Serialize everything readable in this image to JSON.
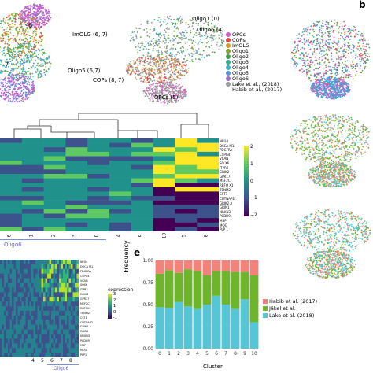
{
  "panel_b": {
    "letter": "b"
  },
  "panel_e": {
    "letter": "e"
  },
  "tsne_labels": [
    {
      "text": "ImOLG (6, 7)",
      "color": "#c8891a"
    },
    {
      "text": "Oligo1 (0)",
      "color": "#66b7cf"
    },
    {
      "text": "Oligo6 (4)",
      "color": "#66b7cf"
    },
    {
      "text": "Oligo5 (6,7)",
      "color": "#66b7cf"
    },
    {
      "text": "COPs (8, 7)",
      "color": "#e05a42"
    },
    {
      "text": "OPCs (5)",
      "color": "#d76fc0"
    }
  ],
  "left_cluster_labels": [
    "6",
    "7",
    "5"
  ],
  "tsne_legend": [
    {
      "label": "OPCs",
      "color": "#d45cc6"
    },
    {
      "label": "COPs",
      "color": "#e8453c"
    },
    {
      "label": "ImOLG",
      "color": "#d99a1f"
    },
    {
      "label": "Oligo1",
      "color": "#7fa72a"
    },
    {
      "label": "Oligo2",
      "color": "#3fa34d"
    },
    {
      "label": "Oligo3",
      "color": "#31b08e"
    },
    {
      "label": "Oligo4",
      "color": "#2cb4c9"
    },
    {
      "label": "Oligo5",
      "color": "#5b8fe0"
    },
    {
      "label": "Oligo6",
      "color": "#a06ad6"
    },
    {
      "label": "Lake et al., (2018)",
      "color": "#9a9a9a"
    },
    {
      "label": "Habib et al., (2017)",
      "color": ""
    }
  ],
  "heatmap_genes": [
    "NEU4",
    "DSCA M1",
    "PDGFRA",
    "CSPG4",
    "VCAN",
    "SO X6",
    "ITPR2",
    "GRIK2",
    "GPR17",
    "MEF2C",
    "RBFO X1",
    "TENM2",
    "CST1",
    "CNTNAP2",
    "GRIK2 A",
    "GRIN1",
    "NRXN3",
    "PCDH9",
    "MBP",
    "MOG",
    "PLP 1"
  ],
  "heatmap_scale": {
    "ticks": [
      "2",
      "1",
      "0",
      "−1",
      "−2"
    ],
    "colors": [
      "#fde725",
      "#5ec962",
      "#21918c",
      "#3b528b",
      "#440154"
    ]
  },
  "heatmap_xticks": [
    "6",
    "1",
    "2",
    "3",
    "0",
    "4",
    "9",
    "10",
    "5",
    "8"
  ],
  "heatmap_group_label": "Oligo6",
  "panel_d": {
    "genes": [
      "NEU4",
      "DOCA M1",
      "PDGFRA",
      "CSPG4",
      "VCAN",
      "SOX6",
      "ITPR2",
      "GRIK2",
      "GPR17",
      "MEF2C",
      "RBFOX1",
      "TENM2",
      "CST1",
      "CNTNAP2",
      "GRIK2 A",
      "GRIN1",
      "NRXN3",
      "PCDH9",
      "MBP",
      "MOG",
      "PLP1"
    ],
    "legend_title": "expression",
    "legend_ticks": [
      "3",
      "2",
      "1",
      "0",
      "-1"
    ],
    "xticks": [
      "4",
      "5",
      "6",
      "7",
      "8"
    ],
    "group_label": "Oligo6"
  },
  "chart_data": {
    "type": "bar",
    "stacked": true,
    "categories": [
      "0",
      "1",
      "2",
      "3",
      "4",
      "5",
      "6",
      "7",
      "8",
      "9",
      "10"
    ],
    "series": [
      {
        "name": "Lake et al. (2018)",
        "color": "#56c6d6",
        "values": [
          0.47,
          0.46,
          0.53,
          0.48,
          0.45,
          0.5,
          0.6,
          0.5,
          0.45,
          0.56,
          0.3
        ]
      },
      {
        "name": "Jäkel et al.",
        "color": "#6fb52c",
        "values": [
          0.38,
          0.43,
          0.33,
          0.42,
          0.43,
          0.33,
          0.28,
          0.38,
          0.42,
          0.31,
          0.53
        ]
      },
      {
        "name": "Habib et al. (2017)",
        "color": "#f2837b",
        "values": [
          0.15,
          0.11,
          0.14,
          0.1,
          0.12,
          0.17,
          0.12,
          0.12,
          0.13,
          0.13,
          0.17
        ]
      }
    ],
    "xlabel": "Cluster",
    "ylabel": "Frequency",
    "ylim": [
      0,
      1
    ],
    "yticks": [
      "0.00",
      "0.25",
      "0.50",
      "0.75",
      "1.00"
    ],
    "legend_position": "right",
    "grid": true
  }
}
